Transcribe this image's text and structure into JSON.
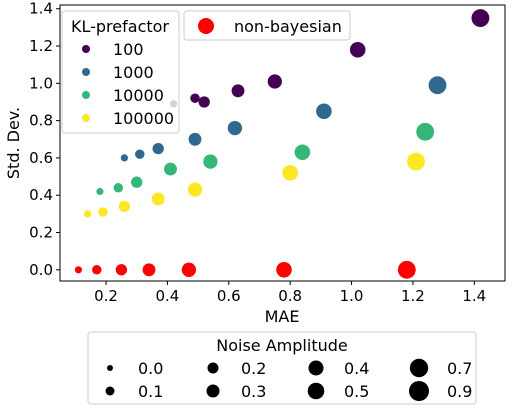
{
  "chart_data": {
    "type": "scatter",
    "xlabel": "MAE",
    "ylabel": "Std. Dev.",
    "xlim": [
      0.05,
      1.5
    ],
    "ylim": [
      -0.06,
      1.42
    ],
    "xticks": [
      "0.2",
      "0.4",
      "0.6",
      "0.8",
      "1.0",
      "1.2",
      "1.4"
    ],
    "yticks": [
      "0.0",
      "0.2",
      "0.4",
      "0.6",
      "0.8",
      "1.0",
      "1.2",
      "1.4"
    ],
    "grid": false,
    "series": [
      {
        "name": "100",
        "group": "KL-prefactor",
        "color": "#440154",
        "points": [
          {
            "x": 0.42,
            "y": 0.89,
            "noise": 0.0
          },
          {
            "x": 0.49,
            "y": 0.92,
            "noise": 0.1
          },
          {
            "x": 0.52,
            "y": 0.9,
            "noise": 0.2
          },
          {
            "x": 0.63,
            "y": 0.96,
            "noise": 0.3
          },
          {
            "x": 0.75,
            "y": 1.01,
            "noise": 0.4
          },
          {
            "x": 1.02,
            "y": 1.18,
            "noise": 0.5
          },
          {
            "x": 1.42,
            "y": 1.35,
            "noise": 0.7
          }
        ]
      },
      {
        "name": "1000",
        "group": "KL-prefactor",
        "color": "#31688e",
        "points": [
          {
            "x": 0.26,
            "y": 0.6,
            "noise": 0.0
          },
          {
            "x": 0.31,
            "y": 0.62,
            "noise": 0.1
          },
          {
            "x": 0.37,
            "y": 0.65,
            "noise": 0.2
          },
          {
            "x": 0.49,
            "y": 0.7,
            "noise": 0.3
          },
          {
            "x": 0.62,
            "y": 0.76,
            "noise": 0.4
          },
          {
            "x": 0.91,
            "y": 0.85,
            "noise": 0.5
          },
          {
            "x": 1.28,
            "y": 0.99,
            "noise": 0.7
          }
        ]
      },
      {
        "name": "10000",
        "group": "KL-prefactor",
        "color": "#35b779",
        "points": [
          {
            "x": 0.18,
            "y": 0.42,
            "noise": 0.0
          },
          {
            "x": 0.24,
            "y": 0.44,
            "noise": 0.1
          },
          {
            "x": 0.3,
            "y": 0.47,
            "noise": 0.2
          },
          {
            "x": 0.41,
            "y": 0.54,
            "noise": 0.3
          },
          {
            "x": 0.54,
            "y": 0.58,
            "noise": 0.4
          },
          {
            "x": 0.84,
            "y": 0.63,
            "noise": 0.5
          },
          {
            "x": 1.24,
            "y": 0.74,
            "noise": 0.7
          }
        ]
      },
      {
        "name": "100000",
        "group": "KL-prefactor",
        "color": "#fde725",
        "points": [
          {
            "x": 0.14,
            "y": 0.3,
            "noise": 0.0
          },
          {
            "x": 0.19,
            "y": 0.31,
            "noise": 0.1
          },
          {
            "x": 0.26,
            "y": 0.34,
            "noise": 0.2
          },
          {
            "x": 0.37,
            "y": 0.38,
            "noise": 0.3
          },
          {
            "x": 0.49,
            "y": 0.43,
            "noise": 0.4
          },
          {
            "x": 0.8,
            "y": 0.52,
            "noise": 0.5
          },
          {
            "x": 1.21,
            "y": 0.58,
            "noise": 0.7
          }
        ]
      },
      {
        "name": "non-bayesian",
        "group": "method",
        "color": "#ff0000",
        "points": [
          {
            "x": 0.11,
            "y": 0.0,
            "noise": 0.0
          },
          {
            "x": 0.17,
            "y": 0.0,
            "noise": 0.1
          },
          {
            "x": 0.25,
            "y": 0.0,
            "noise": 0.2
          },
          {
            "x": 0.34,
            "y": 0.0,
            "noise": 0.3
          },
          {
            "x": 0.47,
            "y": 0.0,
            "noise": 0.4
          },
          {
            "x": 0.78,
            "y": 0.0,
            "noise": 0.5
          },
          {
            "x": 1.18,
            "y": 0.0,
            "noise": 0.7
          }
        ]
      }
    ],
    "legend_color": {
      "title": "KL-prefactor",
      "placement": "top-left",
      "entries": [
        {
          "label": "100",
          "color": "#440154"
        },
        {
          "label": "1000",
          "color": "#31688e"
        },
        {
          "label": "10000",
          "color": "#35b779"
        },
        {
          "label": "100000",
          "color": "#fde725"
        }
      ]
    },
    "legend_method": {
      "placement": "top-center",
      "entries": [
        {
          "label": "non-bayesian",
          "color": "#ff0000"
        }
      ]
    },
    "legend_size": {
      "title": "Noise Amplitude",
      "placement": "below",
      "entries": [
        {
          "label": "0.0",
          "value": 0.0
        },
        {
          "label": "0.1",
          "value": 0.1
        },
        {
          "label": "0.2",
          "value": 0.2
        },
        {
          "label": "0.3",
          "value": 0.3
        },
        {
          "label": "0.4",
          "value": 0.4
        },
        {
          "label": "0.5",
          "value": 0.5
        },
        {
          "label": "0.7",
          "value": 0.7
        },
        {
          "label": "0.9",
          "value": 0.9
        }
      ]
    }
  }
}
